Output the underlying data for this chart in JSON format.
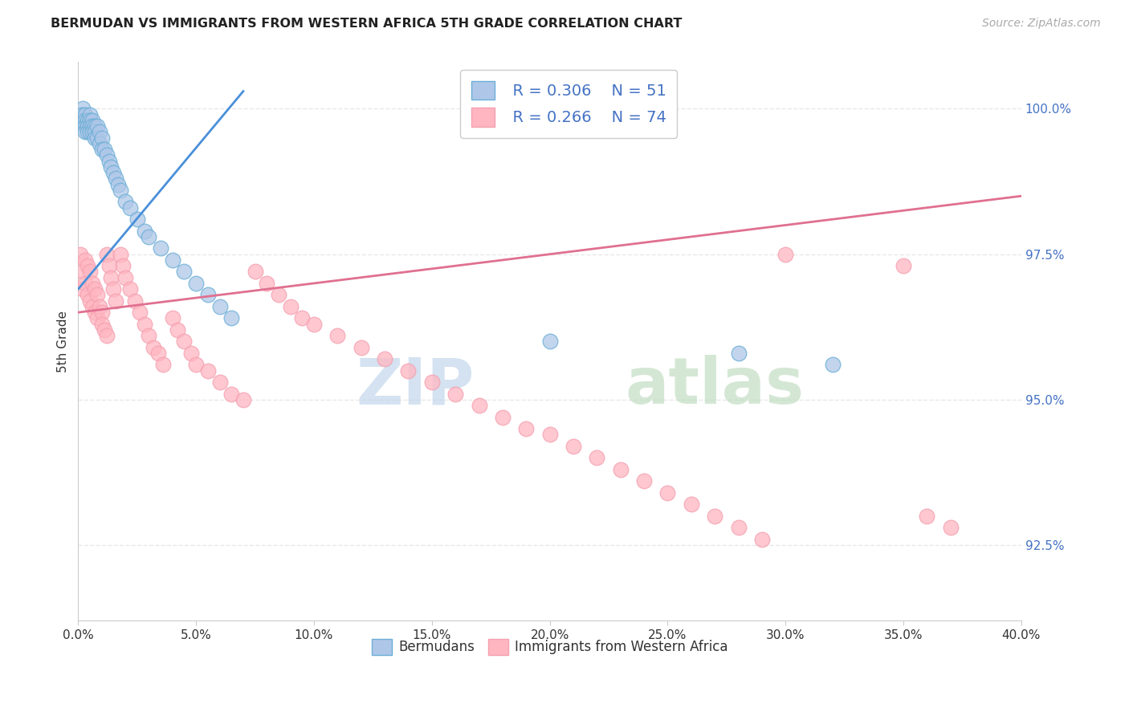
{
  "title": "BERMUDAN VS IMMIGRANTS FROM WESTERN AFRICA 5TH GRADE CORRELATION CHART",
  "source": "Source: ZipAtlas.com",
  "ylabel": "5th Grade",
  "ytick_labels": [
    "100.0%",
    "97.5%",
    "95.0%",
    "92.5%"
  ],
  "ytick_values": [
    1.0,
    0.975,
    0.95,
    0.925
  ],
  "xtick_values": [
    0.0,
    0.05,
    0.1,
    0.15,
    0.2,
    0.25,
    0.3,
    0.35,
    0.4
  ],
  "xlim": [
    0.0,
    0.4
  ],
  "ylim": [
    0.912,
    1.008
  ],
  "legend_blue_r": "R = 0.306",
  "legend_blue_n": "N = 51",
  "legend_pink_r": "R = 0.266",
  "legend_pink_n": "N = 74",
  "blue_color": "#aec7e8",
  "blue_edge": "#6baed6",
  "pink_color": "#ffb6c1",
  "pink_edge": "#f4a0b0",
  "blue_line_color": "#4a90d9",
  "pink_line_color": "#e07090",
  "watermark_zip_color": "#d0dff0",
  "watermark_atlas_color": "#d8e8d0",
  "background_color": "#ffffff",
  "grid_color": "#e8e8e8",
  "blue_scatter_x": [
    0.001,
    0.001,
    0.002,
    0.002,
    0.002,
    0.003,
    0.003,
    0.003,
    0.003,
    0.004,
    0.004,
    0.004,
    0.005,
    0.005,
    0.005,
    0.005,
    0.006,
    0.006,
    0.006,
    0.007,
    0.007,
    0.007,
    0.008,
    0.008,
    0.009,
    0.009,
    0.01,
    0.01,
    0.011,
    0.012,
    0.013,
    0.014,
    0.015,
    0.016,
    0.017,
    0.018,
    0.02,
    0.022,
    0.025,
    0.028,
    0.03,
    0.035,
    0.04,
    0.045,
    0.05,
    0.055,
    0.06,
    0.065,
    0.2,
    0.28,
    0.32
  ],
  "blue_scatter_y": [
    0.999,
    0.998,
    1.0,
    0.999,
    0.998,
    0.999,
    0.998,
    0.997,
    0.996,
    0.998,
    0.997,
    0.996,
    0.999,
    0.998,
    0.997,
    0.996,
    0.998,
    0.997,
    0.996,
    0.997,
    0.996,
    0.995,
    0.997,
    0.995,
    0.996,
    0.994,
    0.995,
    0.993,
    0.993,
    0.992,
    0.991,
    0.99,
    0.989,
    0.988,
    0.987,
    0.986,
    0.984,
    0.983,
    0.981,
    0.979,
    0.978,
    0.976,
    0.974,
    0.972,
    0.97,
    0.968,
    0.966,
    0.964,
    0.96,
    0.958,
    0.956
  ],
  "pink_scatter_x": [
    0.001,
    0.002,
    0.002,
    0.003,
    0.003,
    0.004,
    0.004,
    0.005,
    0.005,
    0.006,
    0.006,
    0.007,
    0.007,
    0.008,
    0.008,
    0.009,
    0.01,
    0.01,
    0.011,
    0.012,
    0.012,
    0.013,
    0.014,
    0.015,
    0.016,
    0.018,
    0.019,
    0.02,
    0.022,
    0.024,
    0.026,
    0.028,
    0.03,
    0.032,
    0.034,
    0.036,
    0.04,
    0.042,
    0.045,
    0.048,
    0.05,
    0.055,
    0.06,
    0.065,
    0.07,
    0.075,
    0.08,
    0.085,
    0.09,
    0.095,
    0.1,
    0.11,
    0.12,
    0.13,
    0.14,
    0.15,
    0.16,
    0.17,
    0.18,
    0.19,
    0.2,
    0.21,
    0.22,
    0.23,
    0.24,
    0.25,
    0.26,
    0.27,
    0.28,
    0.29,
    0.3,
    0.35,
    0.36,
    0.37
  ],
  "pink_scatter_y": [
    0.975,
    0.972,
    0.969,
    0.974,
    0.97,
    0.973,
    0.968,
    0.972,
    0.967,
    0.97,
    0.966,
    0.969,
    0.965,
    0.968,
    0.964,
    0.966,
    0.965,
    0.963,
    0.962,
    0.961,
    0.975,
    0.973,
    0.971,
    0.969,
    0.967,
    0.975,
    0.973,
    0.971,
    0.969,
    0.967,
    0.965,
    0.963,
    0.961,
    0.959,
    0.958,
    0.956,
    0.964,
    0.962,
    0.96,
    0.958,
    0.956,
    0.955,
    0.953,
    0.951,
    0.95,
    0.972,
    0.97,
    0.968,
    0.966,
    0.964,
    0.963,
    0.961,
    0.959,
    0.957,
    0.955,
    0.953,
    0.951,
    0.949,
    0.947,
    0.945,
    0.944,
    0.942,
    0.94,
    0.938,
    0.936,
    0.934,
    0.932,
    0.93,
    0.928,
    0.926,
    0.975,
    0.973,
    0.93,
    0.928
  ],
  "blue_line_x": [
    0.0,
    0.07
  ],
  "blue_line_y": [
    0.969,
    1.003
  ],
  "pink_line_x": [
    0.0,
    0.4
  ],
  "pink_line_y": [
    0.965,
    0.985
  ]
}
